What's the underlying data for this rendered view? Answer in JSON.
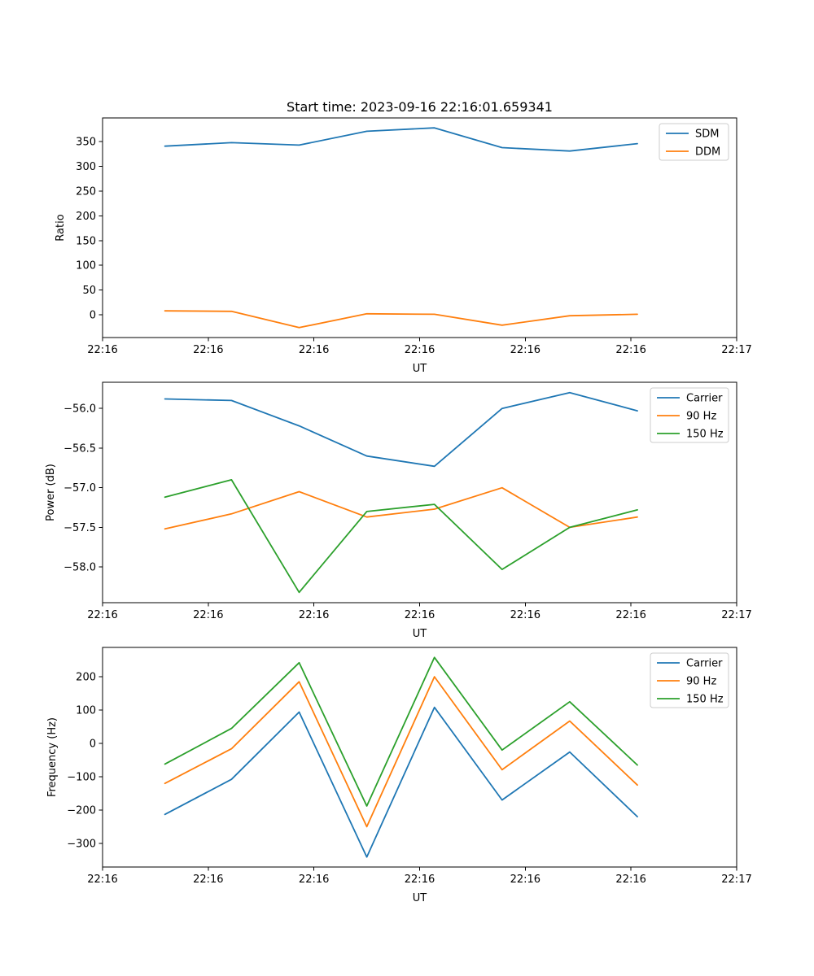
{
  "chart_data": [
    {
      "type": "line",
      "title": "Start time: 2023-09-16 22:16:01.659341",
      "xlabel": "UT",
      "ylabel": "Ratio",
      "grid": false,
      "legend_position": "upper right",
      "xlim": [
        0,
        60
      ],
      "ylim": [
        -46,
        398
      ],
      "x_seconds": [
        5.9,
        12.2,
        18.6,
        25.0,
        31.4,
        37.8,
        44.2,
        50.6
      ],
      "x_ticks": {
        "values": [
          0,
          10,
          20,
          30,
          40,
          50,
          60
        ],
        "labels": [
          "22:16",
          "22:16",
          "22:16",
          "22:16",
          "22:16",
          "22:16",
          "22:17"
        ]
      },
      "y_ticks": {
        "values": [
          0,
          50,
          100,
          150,
          200,
          250,
          300,
          350
        ],
        "labels": [
          "0",
          "50",
          "100",
          "150",
          "200",
          "250",
          "300",
          "350"
        ]
      },
      "series": [
        {
          "name": "SDM",
          "color": "#1f77b4",
          "values": [
            341,
            348,
            343,
            371,
            378,
            338,
            331,
            346
          ]
        },
        {
          "name": "DDM",
          "color": "#ff7f0e",
          "values": [
            8,
            7,
            -26,
            2,
            1,
            -21,
            -2,
            1
          ]
        }
      ]
    },
    {
      "type": "line",
      "title": "",
      "xlabel": "UT",
      "ylabel": "Power (dB)",
      "grid": false,
      "legend_position": "upper right",
      "xlim": [
        0,
        60
      ],
      "ylim": [
        -58.45,
        -55.67
      ],
      "x_seconds": [
        5.9,
        12.2,
        18.6,
        25.0,
        31.4,
        37.8,
        44.2,
        50.6
      ],
      "x_ticks": {
        "values": [
          0,
          10,
          20,
          30,
          40,
          50,
          60
        ],
        "labels": [
          "22:16",
          "22:16",
          "22:16",
          "22:16",
          "22:16",
          "22:16",
          "22:17"
        ]
      },
      "y_ticks": {
        "values": [
          -56.0,
          -56.5,
          -57.0,
          -57.5,
          -58.0
        ],
        "labels": [
          "−56.0",
          "−56.5",
          "−57.0",
          "−57.5",
          "−58.0"
        ]
      },
      "series": [
        {
          "name": "Carrier",
          "color": "#1f77b4",
          "values": [
            -55.88,
            -55.9,
            -56.22,
            -56.6,
            -56.73,
            -56.0,
            -55.8,
            -56.03
          ]
        },
        {
          "name": "90 Hz",
          "color": "#ff7f0e",
          "values": [
            -57.52,
            -57.33,
            -57.05,
            -57.37,
            -57.27,
            -57.0,
            -57.5,
            -57.37
          ]
        },
        {
          "name": "150 Hz",
          "color": "#2ca02c",
          "values": [
            -57.12,
            -56.9,
            -58.32,
            -57.3,
            -57.21,
            -58.03,
            -57.5,
            -57.28
          ]
        }
      ]
    },
    {
      "type": "line",
      "title": "",
      "xlabel": "UT",
      "ylabel": "Frequency (Hz)",
      "grid": false,
      "legend_position": "upper right",
      "xlim": [
        0,
        60
      ],
      "ylim": [
        -371,
        288
      ],
      "x_seconds": [
        5.9,
        12.2,
        18.6,
        25.0,
        31.4,
        37.8,
        44.2,
        50.6
      ],
      "x_ticks": {
        "values": [
          0,
          10,
          20,
          30,
          40,
          50,
          60
        ],
        "labels": [
          "22:16",
          "22:16",
          "22:16",
          "22:16",
          "22:16",
          "22:16",
          "22:17"
        ]
      },
      "y_ticks": {
        "values": [
          200,
          100,
          0,
          -100,
          -200,
          -300
        ],
        "labels": [
          "200",
          "100",
          "0",
          "−100",
          "−200",
          "−300"
        ]
      },
      "series": [
        {
          "name": "Carrier",
          "color": "#1f77b4",
          "values": [
            -213,
            -108,
            94,
            -341,
            108,
            -170,
            -26,
            -220
          ]
        },
        {
          "name": "90 Hz",
          "color": "#ff7f0e",
          "values": [
            -120,
            -16,
            185,
            -250,
            200,
            -79,
            67,
            -125
          ]
        },
        {
          "name": "150 Hz",
          "color": "#2ca02c",
          "values": [
            -62,
            45,
            242,
            -188,
            258,
            -20,
            125,
            -65
          ]
        }
      ]
    }
  ]
}
